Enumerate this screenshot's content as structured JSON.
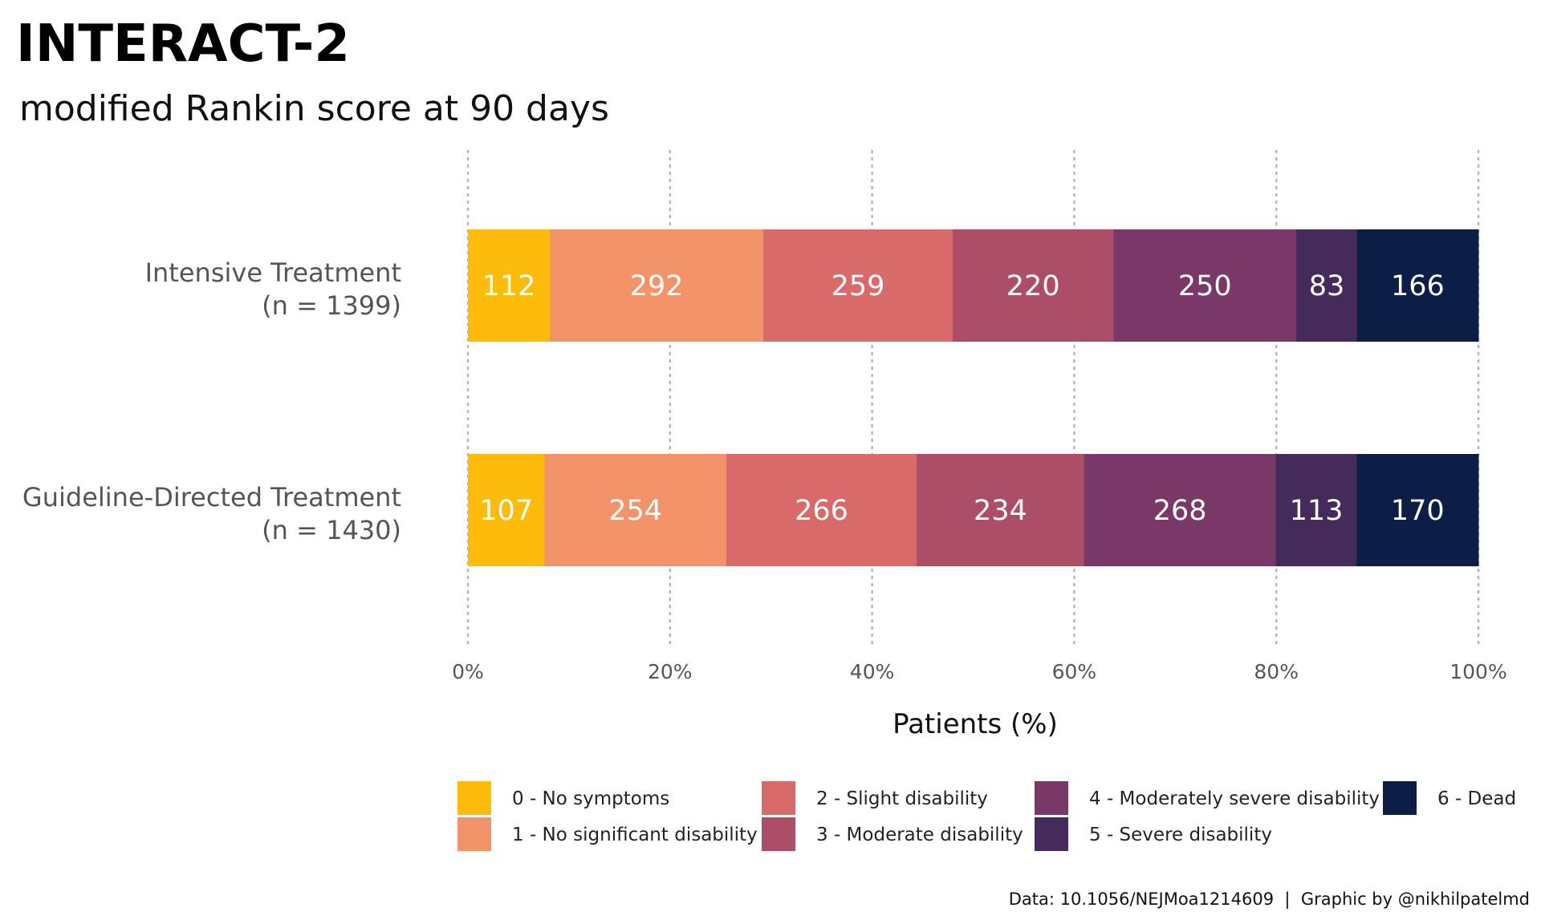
{
  "chart_data": {
    "type": "bar",
    "orientation": "horizontal",
    "stacked": "percent",
    "title": "INTERACT-2",
    "subtitle": "modified Rankin score at 90 days",
    "xlabel": "Patients (%)",
    "ylabel": "",
    "xlim": [
      0,
      100
    ],
    "x_ticks": [
      {
        "value": 0,
        "label": "0%"
      },
      {
        "value": 20,
        "label": "20%"
      },
      {
        "value": 40,
        "label": "40%"
      },
      {
        "value": 60,
        "label": "60%"
      },
      {
        "value": 80,
        "label": "80%"
      },
      {
        "value": 100,
        "label": "100%"
      }
    ],
    "grid": "vertical dotted",
    "legend_position": "bottom",
    "categories": [
      {
        "line1": "Intensive Treatment",
        "line2": "(n = 1399)",
        "total": 1399
      },
      {
        "line1": "Guideline-Directed Treatment",
        "line2": "(n = 1430)",
        "total": 1430
      }
    ],
    "series": [
      {
        "name": "0 - No symptoms",
        "color": "#FDBB0B",
        "values": [
          112,
          107
        ]
      },
      {
        "name": "1 - No significant disability",
        "color": "#F29369",
        "values": [
          292,
          254
        ]
      },
      {
        "name": "2 - Slight disability",
        "color": "#D86A6A",
        "values": [
          259,
          266
        ]
      },
      {
        "name": "3 - Moderate disability",
        "color": "#AD4E69",
        "values": [
          220,
          234
        ]
      },
      {
        "name": "4 - Moderately severe disability",
        "color": "#7A3868",
        "values": [
          250,
          268
        ]
      },
      {
        "name": "5 - Severe disability",
        "color": "#452A5C",
        "values": [
          83,
          113
        ]
      },
      {
        "name": "6 - Dead",
        "color": "#0C1E46",
        "values": [
          166,
          170
        ]
      }
    ],
    "caption": "Data: 10.1056/NEJMoa1214609  |  Graphic by @nikhilpatelmd"
  }
}
